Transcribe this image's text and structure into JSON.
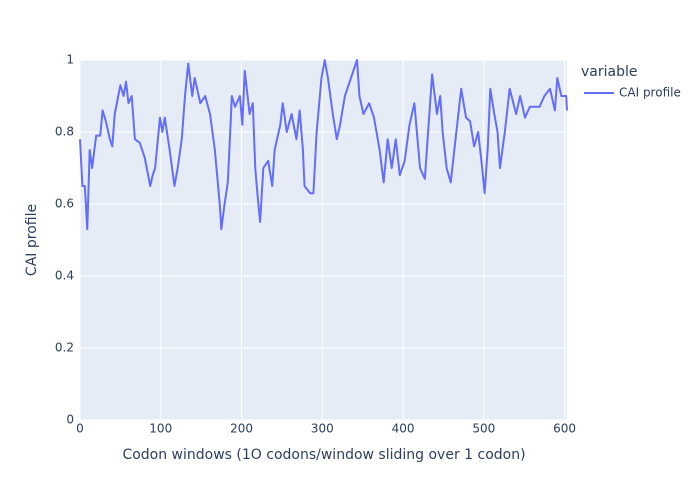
{
  "chart_data": {
    "type": "line",
    "x_label": "Codon windows (1O codons/window sliding over 1 codon)",
    "y_label": "CAI profile",
    "legend_title": "variable",
    "legend_position": "right",
    "grid": true,
    "xlim": [
      0,
      603
    ],
    "xticks": [
      0,
      100,
      200,
      300,
      400,
      500,
      600
    ],
    "ylim": [
      0,
      1
    ],
    "yticks": [
      0,
      0.2,
      0.4,
      0.6,
      0.8,
      1
    ],
    "x": [
      0,
      3,
      6,
      9,
      12,
      15,
      20,
      25,
      28,
      32,
      37,
      40,
      43,
      50,
      54,
      57,
      60,
      64,
      68,
      74,
      80,
      87,
      90,
      93,
      99,
      102,
      105,
      111,
      117,
      121,
      126,
      130,
      134,
      139,
      142,
      149,
      155,
      161,
      167,
      173,
      175,
      179,
      183,
      186,
      188,
      192,
      198,
      201,
      204,
      210,
      214,
      217,
      220,
      223,
      227,
      233,
      238,
      241,
      248,
      251,
      256,
      262,
      268,
      272,
      276,
      278,
      285,
      289,
      293,
      299,
      303,
      307,
      313,
      318,
      322,
      328,
      334,
      343,
      346,
      351,
      358,
      364,
      371,
      376,
      381,
      386,
      391,
      396,
      402,
      408,
      414,
      421,
      427,
      431,
      436,
      442,
      446,
      449,
      454,
      459,
      467,
      472,
      478,
      483,
      488,
      493,
      498,
      501,
      505,
      508,
      513,
      517,
      520,
      526,
      532,
      540,
      545,
      551,
      557,
      569,
      575,
      582,
      588,
      591,
      596,
      602,
      603
    ],
    "series": [
      {
        "name": "CAI profile",
        "color": "#636efa",
        "values": [
          0.78,
          0.65,
          0.65,
          0.53,
          0.75,
          0.7,
          0.79,
          0.79,
          0.86,
          0.83,
          0.78,
          0.76,
          0.85,
          0.93,
          0.9,
          0.94,
          0.88,
          0.9,
          0.78,
          0.77,
          0.73,
          0.65,
          0.68,
          0.7,
          0.84,
          0.8,
          0.84,
          0.75,
          0.65,
          0.7,
          0.78,
          0.9,
          0.99,
          0.9,
          0.95,
          0.88,
          0.9,
          0.85,
          0.75,
          0.6,
          0.53,
          0.6,
          0.66,
          0.8,
          0.9,
          0.87,
          0.9,
          0.82,
          0.97,
          0.85,
          0.88,
          0.7,
          0.62,
          0.55,
          0.7,
          0.72,
          0.65,
          0.75,
          0.82,
          0.88,
          0.8,
          0.85,
          0.78,
          0.86,
          0.75,
          0.65,
          0.63,
          0.63,
          0.8,
          0.95,
          1.0,
          0.95,
          0.85,
          0.78,
          0.82,
          0.9,
          0.94,
          1.0,
          0.9,
          0.85,
          0.88,
          0.84,
          0.75,
          0.66,
          0.78,
          0.7,
          0.78,
          0.68,
          0.72,
          0.82,
          0.88,
          0.7,
          0.67,
          0.8,
          0.96,
          0.85,
          0.9,
          0.8,
          0.7,
          0.66,
          0.82,
          0.92,
          0.84,
          0.83,
          0.76,
          0.8,
          0.7,
          0.63,
          0.76,
          0.92,
          0.85,
          0.8,
          0.7,
          0.8,
          0.92,
          0.85,
          0.9,
          0.84,
          0.87,
          0.87,
          0.9,
          0.92,
          0.86,
          0.95,
          0.9,
          0.9,
          0.86
        ]
      }
    ]
  }
}
